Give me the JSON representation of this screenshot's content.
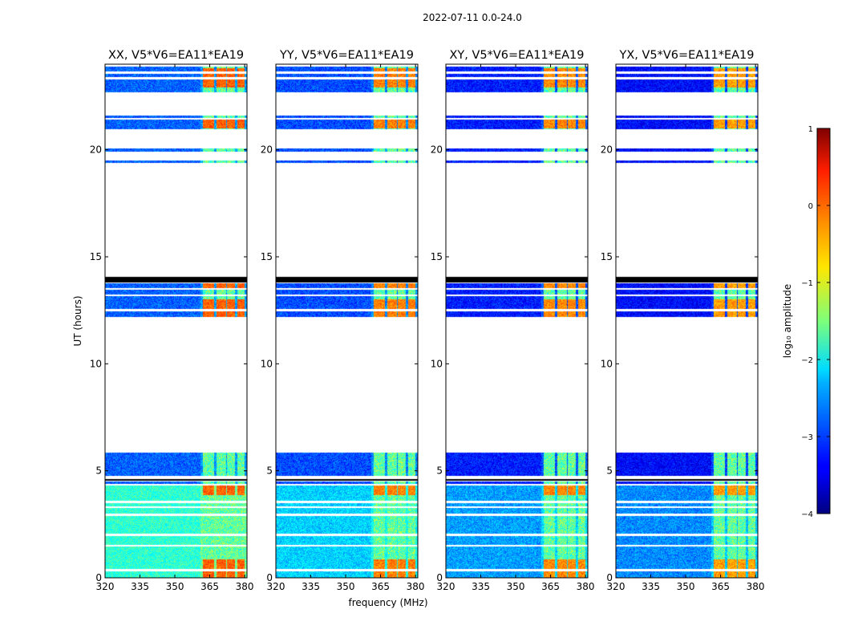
{
  "figure_title": "2022-07-11 0.0-24.0",
  "colorbar": {
    "label": "log₁₀ amplitude",
    "vmin": -4,
    "vmax": 1,
    "ticks": [
      "1",
      "0",
      "−1",
      "−2",
      "−3",
      "−4"
    ]
  },
  "chart_data": {
    "type": "heatmap",
    "xlabel": "frequency (MHz)",
    "ylabel": "UT (hours)",
    "xlim": [
      320,
      381
    ],
    "ylim": [
      0,
      24
    ],
    "xticks": [
      320,
      335,
      350,
      365,
      380
    ],
    "yticks": [
      0,
      5,
      10,
      15,
      20
    ],
    "panels": [
      {
        "title": "XX, V5*V6=EA11*EA19",
        "base_level": 0.42,
        "rfi_level": 0.78
      },
      {
        "title": "YY, V5*V6=EA11*EA19",
        "base_level": 0.25,
        "rfi_level": 0.75
      },
      {
        "title": "XY, V5*V6=EA11*EA19",
        "base_level": 0.2,
        "rfi_level": 0.74
      },
      {
        "title": "YX, V5*V6=EA11*EA19",
        "base_level": 0.18,
        "rfi_level": 0.72
      }
    ],
    "data_time_ranges_hours": [
      [
        0,
        0.3
      ],
      [
        0.4,
        1.45
      ],
      [
        1.55,
        1.95
      ],
      [
        2.05,
        2.9
      ],
      [
        3.0,
        3.25
      ],
      [
        3.35,
        3.5
      ],
      [
        3.6,
        4.3
      ],
      [
        4.4,
        4.5
      ],
      [
        4.75,
        5.85
      ],
      [
        12.2,
        12.45
      ],
      [
        12.55,
        13.15
      ],
      [
        13.25,
        13.45
      ],
      [
        13.55,
        13.75
      ],
      [
        19.4,
        19.5
      ],
      [
        19.9,
        20.05
      ],
      [
        20.95,
        21.4
      ],
      [
        21.5,
        21.6
      ],
      [
        22.7,
        23.3
      ],
      [
        23.4,
        23.55
      ],
      [
        23.65,
        23.9
      ]
    ],
    "flagged_black_ranges_hours": [
      [
        13.8,
        14.05
      ],
      [
        4.55,
        4.6
      ]
    ],
    "rfi_freq_bands_mhz": [
      [
        362,
        367
      ],
      [
        368,
        372
      ],
      [
        372.5,
        376
      ],
      [
        377,
        380
      ]
    ],
    "rfi_strong_time_ranges_hours": [
      [
        0,
        0.85
      ],
      [
        3.85,
        4.35
      ],
      [
        12.2,
        13.0
      ],
      [
        13.55,
        13.75
      ],
      [
        21.0,
        21.4
      ],
      [
        22.9,
        23.8
      ]
    ]
  }
}
